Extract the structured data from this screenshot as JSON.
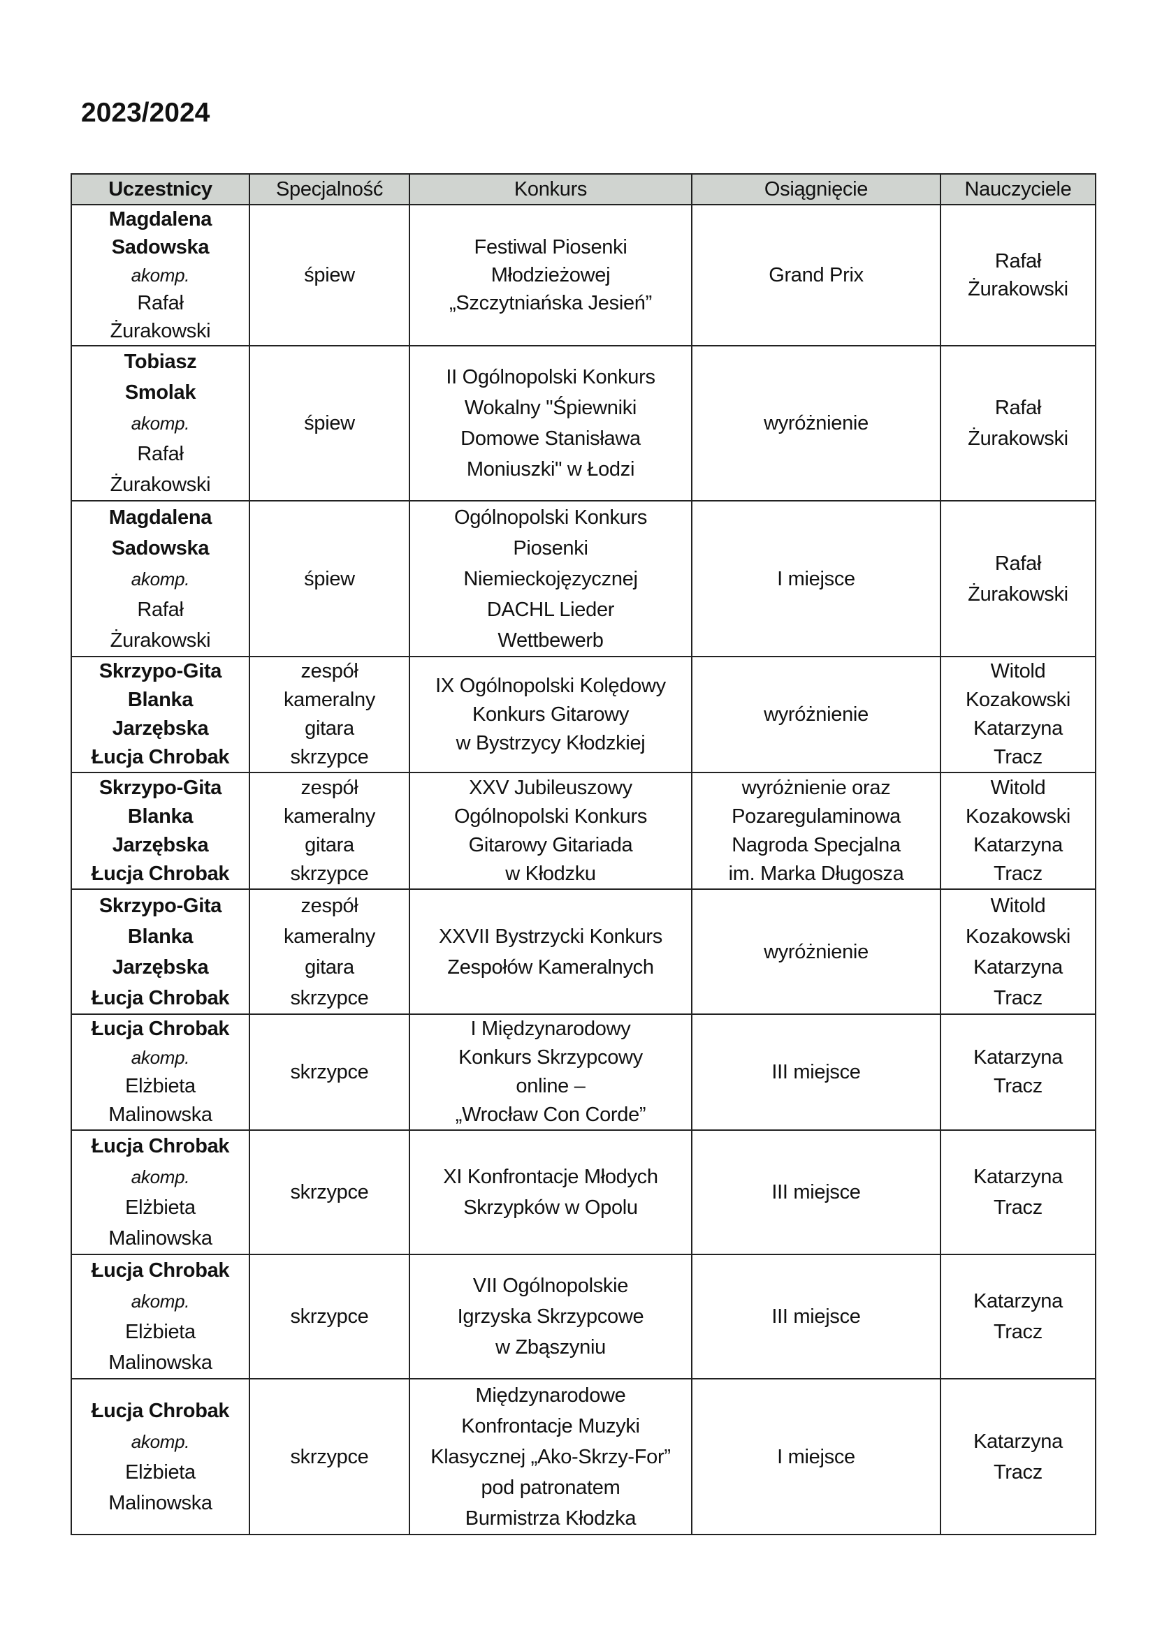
{
  "title": "2023/2024",
  "table": {
    "headers": [
      "Uczestnicy",
      "Specjalność",
      "Konkurs",
      "Osiągnięcie",
      "Nauczyciele"
    ],
    "rows": [
      {
        "participants": [
          {
            "text": "Magdalena",
            "style": "bold"
          },
          {
            "text": "Sadowska",
            "style": "bold"
          },
          {
            "text": "akomp.",
            "style": "ital"
          },
          {
            "text": "Rafał",
            "style": "normal"
          },
          {
            "text": "Żurakowski",
            "style": "normal"
          }
        ],
        "specialty": [
          "śpiew"
        ],
        "competition": [
          "Festiwal Piosenki",
          "Młodzieżowej",
          "„Szczytniańska Jesień”"
        ],
        "achievement": [
          "Grand Prix"
        ],
        "teachers": [
          "Rafał",
          "Żurakowski"
        ]
      },
      {
        "participants": [
          {
            "text": "Tobiasz",
            "style": "bold"
          },
          {
            "text": "Smolak",
            "style": "bold"
          },
          {
            "text": "akomp.",
            "style": "ital"
          },
          {
            "text": "Rafał",
            "style": "normal"
          },
          {
            "text": "Żurakowski",
            "style": "normal"
          }
        ],
        "specialty": [
          "śpiew"
        ],
        "competition": [
          "II Ogólnopolski Konkurs",
          "Wokalny \"Śpiewniki",
          "Domowe Stanisława",
          "Moniuszki\" w Łodzi"
        ],
        "achievement": [
          "wyróżnienie"
        ],
        "teachers": [
          "Rafał",
          "Żurakowski"
        ]
      },
      {
        "participants": [
          {
            "text": "Magdalena",
            "style": "bold"
          },
          {
            "text": "Sadowska",
            "style": "bold"
          },
          {
            "text": "akomp.",
            "style": "ital"
          },
          {
            "text": "Rafał",
            "style": "normal"
          },
          {
            "text": "Żurakowski",
            "style": "normal"
          }
        ],
        "specialty": [
          "śpiew"
        ],
        "competition": [
          "Ogólnopolski Konkurs",
          "Piosenki",
          "Niemieckojęzycznej",
          "DACHL Lieder",
          "Wettbewerb"
        ],
        "achievement": [
          "I miejsce"
        ],
        "teachers": [
          "Rafał",
          "Żurakowski"
        ]
      },
      {
        "participants": [
          {
            "text": "Skrzypo-Gita",
            "style": "bold"
          },
          {
            "text": "Blanka",
            "style": "bold"
          },
          {
            "text": "Jarzębska",
            "style": "bold"
          },
          {
            "text": "Łucja Chrobak",
            "style": "bold"
          }
        ],
        "specialty": [
          "zespół",
          "kameralny",
          "gitara",
          "skrzypce"
        ],
        "competition": [
          "IX Ogólnopolski Kolędowy",
          "Konkurs Gitarowy",
          "w Bystrzycy Kłodzkiej"
        ],
        "achievement": [
          "wyróżnienie"
        ],
        "teachers": [
          "Witold",
          "Kozakowski",
          "Katarzyna",
          "Tracz"
        ]
      },
      {
        "participants": [
          {
            "text": "Skrzypo-Gita",
            "style": "bold"
          },
          {
            "text": "Blanka",
            "style": "bold"
          },
          {
            "text": "Jarzębska",
            "style": "bold"
          },
          {
            "text": "Łucja Chrobak",
            "style": "bold"
          }
        ],
        "specialty": [
          "zespół",
          "kameralny",
          "gitara",
          "skrzypce"
        ],
        "competition": [
          "XXV Jubileuszowy",
          "Ogólnopolski Konkurs",
          "Gitarowy Gitariada",
          "w Kłodzku"
        ],
        "achievement": [
          "wyróżnienie oraz",
          "Pozaregulaminowa",
          "Nagroda Specjalna",
          "im. Marka Długosza"
        ],
        "teachers": [
          "Witold",
          "Kozakowski",
          "Katarzyna",
          "Tracz"
        ]
      },
      {
        "participants": [
          {
            "text": "Skrzypo-Gita",
            "style": "bold"
          },
          {
            "text": "Blanka",
            "style": "bold"
          },
          {
            "text": "Jarzębska",
            "style": "bold"
          },
          {
            "text": "Łucja Chrobak",
            "style": "bold"
          }
        ],
        "specialty": [
          "zespół",
          "kameralny",
          "gitara",
          "skrzypce"
        ],
        "competition": [
          "XXVII Bystrzycki Konkurs",
          "Zespołów Kameralnych"
        ],
        "achievement": [
          "wyróżnienie"
        ],
        "teachers": [
          "Witold",
          "Kozakowski",
          "Katarzyna",
          "Tracz"
        ]
      },
      {
        "participants": [
          {
            "text": "Łucja Chrobak",
            "style": "bold"
          },
          {
            "text": "akomp.",
            "style": "ital"
          },
          {
            "text": "Elżbieta",
            "style": "normal"
          },
          {
            "text": "Malinowska",
            "style": "normal"
          }
        ],
        "specialty": [
          "skrzypce"
        ],
        "competition": [
          "I Międzynarodowy",
          "Konkurs Skrzypcowy",
          "online –",
          "„Wrocław Con Corde”"
        ],
        "achievement": [
          "III miejsce"
        ],
        "teachers": [
          "Katarzyna",
          "Tracz"
        ]
      },
      {
        "participants": [
          {
            "text": "Łucja Chrobak",
            "style": "bold"
          },
          {
            "text": "akomp.",
            "style": "ital"
          },
          {
            "text": "Elżbieta",
            "style": "normal"
          },
          {
            "text": "Malinowska",
            "style": "normal"
          }
        ],
        "specialty": [
          "skrzypce"
        ],
        "competition": [
          "XI Konfrontacje Młodych",
          "Skrzypków w Opolu"
        ],
        "achievement": [
          "III miejsce"
        ],
        "teachers": [
          "Katarzyna",
          "Tracz"
        ]
      },
      {
        "participants": [
          {
            "text": "Łucja Chrobak",
            "style": "bold"
          },
          {
            "text": "akomp.",
            "style": "ital"
          },
          {
            "text": "Elżbieta",
            "style": "normal"
          },
          {
            "text": "Malinowska",
            "style": "normal"
          }
        ],
        "specialty": [
          "skrzypce"
        ],
        "competition": [
          "VII Ogólnopolskie",
          "Igrzyska Skrzypcowe",
          "w Zbąszyniu"
        ],
        "achievement": [
          "III miejsce"
        ],
        "teachers": [
          "Katarzyna",
          "Tracz"
        ]
      },
      {
        "participants": [
          {
            "text": "Łucja Chrobak",
            "style": "bold"
          },
          {
            "text": "akomp.",
            "style": "ital"
          },
          {
            "text": "Elżbieta",
            "style": "normal"
          },
          {
            "text": "Malinowska",
            "style": "normal"
          }
        ],
        "specialty": [
          "skrzypce"
        ],
        "competition": [
          "Międzynarodowe",
          "Konfrontacje Muzyki",
          "Klasycznej „Ako-Skrzy-For”",
          "pod patronatem",
          "Burmistrza Kłodzka"
        ],
        "achievement": [
          "I miejsce"
        ],
        "teachers": [
          "Katarzyna",
          "Tracz"
        ]
      }
    ]
  }
}
